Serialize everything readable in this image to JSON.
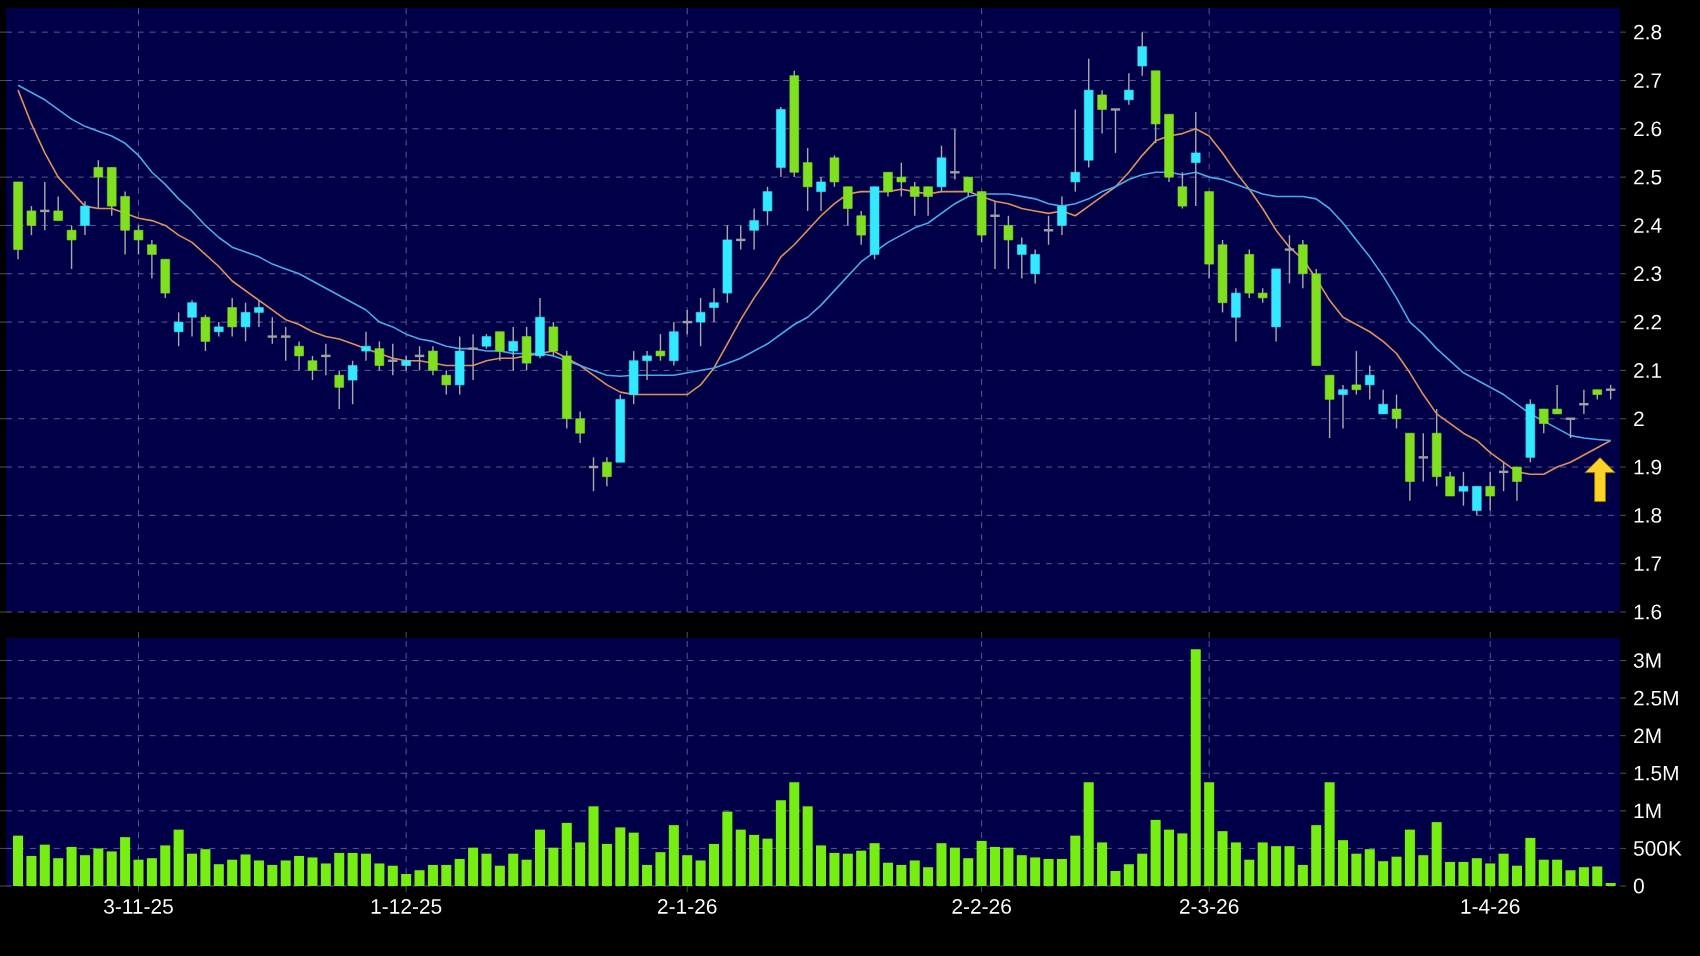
{
  "chart_data": [
    {
      "type": "candlestick",
      "categories": [
        null,
        null,
        null,
        null,
        null,
        null,
        null,
        null,
        null,
        null,
        null,
        null,
        null,
        null,
        null,
        null,
        null,
        null,
        null,
        null,
        null,
        null,
        null,
        null,
        null,
        null,
        null,
        null,
        null,
        null,
        null,
        null,
        null,
        null,
        null,
        null,
        null,
        null,
        null,
        null,
        null,
        null,
        null,
        null,
        null,
        null,
        null,
        null,
        null,
        null,
        null,
        null,
        null,
        null,
        null,
        null,
        null,
        null,
        null,
        null,
        null,
        null,
        null,
        null,
        null,
        null,
        null,
        null,
        null,
        null,
        null,
        null,
        null,
        null,
        null,
        null,
        null,
        null,
        null,
        null,
        null,
        null,
        null,
        null,
        null,
        null,
        null,
        null,
        null,
        null,
        null,
        null,
        null,
        null,
        null,
        null,
        null,
        null,
        null,
        null,
        null,
        null,
        null,
        null,
        null,
        null,
        null,
        null,
        null,
        null,
        null,
        null,
        null,
        null,
        null,
        null,
        null,
        null,
        null,
        null
      ],
      "ohlc": [
        [
          2.49,
          2.49,
          2.33,
          2.35
        ],
        [
          2.43,
          2.44,
          2.38,
          2.4
        ],
        [
          2.43,
          2.49,
          2.39,
          2.43
        ],
        [
          2.43,
          2.46,
          2.41,
          2.41
        ],
        [
          2.39,
          2.4,
          2.31,
          2.37
        ],
        [
          2.4,
          2.45,
          2.38,
          2.44
        ],
        [
          2.52,
          2.535,
          2.435,
          2.5
        ],
        [
          2.52,
          2.52,
          2.42,
          2.44
        ],
        [
          2.46,
          2.47,
          2.34,
          2.39
        ],
        [
          2.39,
          2.4,
          2.34,
          2.37
        ],
        [
          2.36,
          2.37,
          2.29,
          2.34
        ],
        [
          2.33,
          2.33,
          2.25,
          2.26
        ],
        [
          2.18,
          2.22,
          2.15,
          2.2
        ],
        [
          2.21,
          2.245,
          2.17,
          2.24
        ],
        [
          2.21,
          2.215,
          2.14,
          2.16
        ],
        [
          2.18,
          2.2,
          2.17,
          2.19
        ],
        [
          2.23,
          2.25,
          2.17,
          2.19
        ],
        [
          2.19,
          2.24,
          2.16,
          2.22
        ],
        [
          2.22,
          2.245,
          2.19,
          2.23
        ],
        [
          2.17,
          2.21,
          2.155,
          2.17
        ],
        [
          2.17,
          2.19,
          2.12,
          2.17
        ],
        [
          2.15,
          2.16,
          2.1,
          2.13
        ],
        [
          2.12,
          2.13,
          2.08,
          2.1
        ],
        [
          2.13,
          2.155,
          2.09,
          2.13
        ],
        [
          2.09,
          2.1,
          2.02,
          2.065
        ],
        [
          2.08,
          2.12,
          2.03,
          2.11
        ],
        [
          2.14,
          2.18,
          2.12,
          2.15
        ],
        [
          2.145,
          2.16,
          2.1,
          2.11
        ],
        [
          2.12,
          2.155,
          2.09,
          2.12
        ],
        [
          2.11,
          2.13,
          2.1,
          2.12
        ],
        [
          2.13,
          2.15,
          2.1,
          2.13
        ],
        [
          2.14,
          2.15,
          2.09,
          2.1
        ],
        [
          2.09,
          2.1,
          2.05,
          2.07
        ],
        [
          2.07,
          2.17,
          2.05,
          2.14
        ],
        [
          2.145,
          2.175,
          2.08,
          2.145
        ],
        [
          2.15,
          2.175,
          2.145,
          2.17
        ],
        [
          2.18,
          2.18,
          2.12,
          2.14
        ],
        [
          2.14,
          2.19,
          2.1,
          2.16
        ],
        [
          2.17,
          2.19,
          2.1,
          2.115
        ],
        [
          2.13,
          2.25,
          2.125,
          2.21
        ],
        [
          2.19,
          2.2,
          2.13,
          2.14
        ],
        [
          2.13,
          2.14,
          1.98,
          2.0
        ],
        [
          2.0,
          2.015,
          1.95,
          1.97
        ],
        [
          1.9,
          1.92,
          1.85,
          1.9
        ],
        [
          1.91,
          1.92,
          1.86,
          1.88
        ],
        [
          1.91,
          2.05,
          1.91,
          2.04
        ],
        [
          2.05,
          2.14,
          2.03,
          2.12
        ],
        [
          2.12,
          2.14,
          2.08,
          2.13
        ],
        [
          2.14,
          2.175,
          2.12,
          2.13
        ],
        [
          2.12,
          2.2,
          2.11,
          2.18
        ],
        [
          2.2,
          2.225,
          2.175,
          2.2
        ],
        [
          2.2,
          2.25,
          2.15,
          2.22
        ],
        [
          2.23,
          2.27,
          2.2,
          2.24
        ],
        [
          2.26,
          2.4,
          2.24,
          2.37
        ],
        [
          2.37,
          2.4,
          2.35,
          2.37
        ],
        [
          2.39,
          2.435,
          2.35,
          2.41
        ],
        [
          2.43,
          2.48,
          2.4,
          2.47
        ],
        [
          2.52,
          2.645,
          2.5,
          2.64
        ],
        [
          2.71,
          2.72,
          2.5,
          2.51
        ],
        [
          2.53,
          2.56,
          2.43,
          2.48
        ],
        [
          2.47,
          2.5,
          2.43,
          2.49
        ],
        [
          2.54,
          2.545,
          2.48,
          2.49
        ],
        [
          2.48,
          2.48,
          2.4,
          2.435
        ],
        [
          2.42,
          2.43,
          2.36,
          2.38
        ],
        [
          2.34,
          2.48,
          2.33,
          2.48
        ],
        [
          2.51,
          2.51,
          2.46,
          2.47
        ],
        [
          2.5,
          2.53,
          2.46,
          2.49
        ],
        [
          2.48,
          2.49,
          2.42,
          2.46
        ],
        [
          2.48,
          2.48,
          2.42,
          2.46
        ],
        [
          2.48,
          2.565,
          2.47,
          2.54
        ],
        [
          2.51,
          2.6,
          2.495,
          2.51
        ],
        [
          2.5,
          2.5,
          2.46,
          2.47
        ],
        [
          2.47,
          2.47,
          2.365,
          2.38
        ],
        [
          2.42,
          2.45,
          2.31,
          2.42
        ],
        [
          2.4,
          2.42,
          2.31,
          2.37
        ],
        [
          2.34,
          2.375,
          2.29,
          2.36
        ],
        [
          2.3,
          2.35,
          2.28,
          2.34
        ],
        [
          2.39,
          2.42,
          2.36,
          2.39
        ],
        [
          2.4,
          2.46,
          2.38,
          2.44
        ],
        [
          2.49,
          2.64,
          2.47,
          2.51
        ],
        [
          2.535,
          2.745,
          2.52,
          2.68
        ],
        [
          2.67,
          2.68,
          2.59,
          2.64
        ],
        [
          2.64,
          2.64,
          2.55,
          2.64
        ],
        [
          2.66,
          2.715,
          2.65,
          2.68
        ],
        [
          2.73,
          2.8,
          2.71,
          2.77
        ],
        [
          2.72,
          2.72,
          2.57,
          2.61
        ],
        [
          2.63,
          2.63,
          2.49,
          2.5
        ],
        [
          2.48,
          2.51,
          2.435,
          2.44
        ],
        [
          2.53,
          2.635,
          2.44,
          2.55
        ],
        [
          2.47,
          2.47,
          2.29,
          2.32
        ],
        [
          2.36,
          2.37,
          2.22,
          2.24
        ],
        [
          2.21,
          2.27,
          2.16,
          2.26
        ],
        [
          2.34,
          2.35,
          2.25,
          2.26
        ],
        [
          2.26,
          2.27,
          2.24,
          2.25
        ],
        [
          2.19,
          2.31,
          2.16,
          2.31
        ],
        [
          2.35,
          2.38,
          2.28,
          2.35
        ],
        [
          2.36,
          2.37,
          2.27,
          2.3
        ],
        [
          2.3,
          2.31,
          2.11,
          2.11
        ],
        [
          2.09,
          2.09,
          1.96,
          2.04
        ],
        [
          2.05,
          2.07,
          1.98,
          2.06
        ],
        [
          2.07,
          2.14,
          2.05,
          2.06
        ],
        [
          2.07,
          2.11,
          2.04,
          2.09
        ],
        [
          2.01,
          2.06,
          2.01,
          2.03
        ],
        [
          2.02,
          2.05,
          1.98,
          2.0
        ],
        [
          1.97,
          1.97,
          1.83,
          1.87
        ],
        [
          1.92,
          1.97,
          1.87,
          1.92
        ],
        [
          1.97,
          2.02,
          1.86,
          1.88
        ],
        [
          1.88,
          1.89,
          1.84,
          1.84
        ],
        [
          1.85,
          1.89,
          1.82,
          1.86
        ],
        [
          1.81,
          1.86,
          1.8,
          1.86
        ],
        [
          1.86,
          1.89,
          1.81,
          1.84
        ],
        [
          1.89,
          1.91,
          1.85,
          1.89
        ],
        [
          1.9,
          1.9,
          1.83,
          1.87
        ],
        [
          1.92,
          2.04,
          1.91,
          2.03
        ],
        [
          2.02,
          2.02,
          1.97,
          1.99
        ],
        [
          2.02,
          2.07,
          2.01,
          2.01
        ],
        [
          2.0,
          2.0,
          1.96,
          2.0
        ],
        [
          2.03,
          2.06,
          2.01,
          2.03
        ],
        [
          2.06,
          2.06,
          2.04,
          2.05
        ],
        [
          2.06,
          2.07,
          2.04,
          2.06
        ]
      ],
      "colors": [
        "#80e020",
        "#80e020",
        "#a0a0a0",
        "#80e020",
        "#80e020",
        "#33e8ff",
        "#80e020",
        "#80e020",
        "#80e020",
        "#80e020",
        "#80e020",
        "#80e020",
        "#33e8ff",
        "#33e8ff",
        "#80e020",
        "#33e8ff",
        "#80e020",
        "#33e8ff",
        "#33e8ff",
        "#a0a0a0",
        "#a0a0a0",
        "#80e020",
        "#80e020",
        "#a0a0a0",
        "#80e020",
        "#33e8ff",
        "#33e8ff",
        "#80e020",
        "#a0a0a0",
        "#33e8ff",
        "#a0a0a0",
        "#80e020",
        "#80e020",
        "#33e8ff",
        "#a0a0a0",
        "#33e8ff",
        "#80e020",
        "#33e8ff",
        "#80e020",
        "#33e8ff",
        "#80e020",
        "#80e020",
        "#80e020",
        "#a0a0a0",
        "#80e020",
        "#33e8ff",
        "#33e8ff",
        "#33e8ff",
        "#80e020",
        "#33e8ff",
        "#a0a0a0",
        "#33e8ff",
        "#33e8ff",
        "#33e8ff",
        "#a0a0a0",
        "#33e8ff",
        "#33e8ff",
        "#33e8ff",
        "#80e020",
        "#80e020",
        "#33e8ff",
        "#80e020",
        "#80e020",
        "#80e020",
        "#33e8ff",
        "#80e020",
        "#80e020",
        "#80e020",
        "#80e020",
        "#33e8ff",
        "#a0a0a0",
        "#80e020",
        "#80e020",
        "#a0a0a0",
        "#80e020",
        "#33e8ff",
        "#33e8ff",
        "#a0a0a0",
        "#33e8ff",
        "#33e8ff",
        "#33e8ff",
        "#80e020",
        "#a0a0a0",
        "#33e8ff",
        "#33e8ff",
        "#80e020",
        "#80e020",
        "#80e020",
        "#33e8ff",
        "#80e020",
        "#80e020",
        "#33e8ff",
        "#80e020",
        "#80e020",
        "#33e8ff",
        "#a0a0a0",
        "#80e020",
        "#80e020",
        "#80e020",
        "#33e8ff",
        "#80e020",
        "#33e8ff",
        "#33e8ff",
        "#80e020",
        "#80e020",
        "#a0a0a0",
        "#80e020",
        "#80e020",
        "#33e8ff",
        "#33e8ff",
        "#80e020",
        "#a0a0a0",
        "#80e020",
        "#33e8ff",
        "#80e020",
        "#80e020",
        "#a0a0a0",
        "#a0a0a0",
        "#80e020",
        "#a0a0a0"
      ],
      "series": [
        {
          "type": "line",
          "color": "#e0905a",
          "values": [
            2.68,
            2.61,
            2.55,
            2.5,
            2.47,
            2.44,
            2.435,
            2.435,
            2.425,
            2.415,
            2.41,
            2.4,
            2.38,
            2.365,
            2.34,
            2.315,
            2.285,
            2.265,
            2.245,
            2.225,
            2.205,
            2.195,
            2.18,
            2.17,
            2.165,
            2.155,
            2.145,
            2.135,
            2.125,
            2.12,
            2.12,
            2.115,
            2.11,
            2.11,
            2.11,
            2.12,
            2.125,
            2.125,
            2.13,
            2.135,
            2.14,
            2.125,
            2.11,
            2.09,
            2.07,
            2.055,
            2.05,
            2.05,
            2.05,
            2.05,
            2.05,
            2.07,
            2.105,
            2.155,
            2.205,
            2.25,
            2.29,
            2.335,
            2.36,
            2.39,
            2.42,
            2.445,
            2.465,
            2.47,
            2.47,
            2.47,
            2.475,
            2.47,
            2.465,
            2.47,
            2.47,
            2.47,
            2.46,
            2.45,
            2.445,
            2.435,
            2.43,
            2.425,
            2.43,
            2.42,
            2.44,
            2.46,
            2.48,
            2.51,
            2.545,
            2.575,
            2.585,
            2.59,
            2.6,
            2.585,
            2.55,
            2.51,
            2.475,
            2.435,
            2.39,
            2.355,
            2.33,
            2.29,
            2.245,
            2.21,
            2.195,
            2.18,
            2.16,
            2.135,
            2.095,
            2.05,
            2.01,
            1.99,
            1.97,
            1.955,
            1.93,
            1.91,
            1.89,
            1.885,
            1.885,
            1.9,
            1.91,
            1.925,
            1.94,
            1.955
          ]
        },
        {
          "type": "line",
          "color": "#4aaae8",
          "values": [
            2.69,
            2.675,
            2.66,
            2.64,
            2.62,
            2.605,
            2.595,
            2.585,
            2.57,
            2.545,
            2.51,
            2.485,
            2.455,
            2.43,
            2.4,
            2.375,
            2.355,
            2.345,
            2.335,
            2.32,
            2.31,
            2.3,
            2.285,
            2.27,
            2.255,
            2.24,
            2.225,
            2.2,
            2.19,
            2.175,
            2.165,
            2.16,
            2.15,
            2.145,
            2.145,
            2.14,
            2.14,
            2.135,
            2.135,
            2.135,
            2.13,
            2.12,
            2.11,
            2.1,
            2.09,
            2.088,
            2.09,
            2.09,
            2.09,
            2.09,
            2.095,
            2.1,
            2.105,
            2.115,
            2.125,
            2.14,
            2.155,
            2.175,
            2.195,
            2.21,
            2.235,
            2.265,
            2.295,
            2.325,
            2.345,
            2.365,
            2.38,
            2.395,
            2.405,
            2.425,
            2.445,
            2.46,
            2.465,
            2.465,
            2.465,
            2.46,
            2.455,
            2.445,
            2.44,
            2.445,
            2.455,
            2.47,
            2.48,
            2.495,
            2.505,
            2.51,
            2.51,
            2.505,
            2.51,
            2.5,
            2.495,
            2.485,
            2.475,
            2.465,
            2.46,
            2.46,
            2.46,
            2.455,
            2.435,
            2.405,
            2.37,
            2.335,
            2.295,
            2.25,
            2.2,
            2.175,
            2.145,
            2.12,
            2.095,
            2.08,
            2.065,
            2.05,
            2.03,
            2.01,
            1.995,
            1.98,
            1.965,
            1.96,
            1.957,
            1.955
          ]
        }
      ],
      "ylim": [
        1.6,
        2.85
      ],
      "yticks": [
        1.6,
        1.7,
        1.8,
        1.9,
        2,
        2.1,
        2.2,
        2.3,
        2.4,
        2.5,
        2.6,
        2.7,
        2.8
      ],
      "grid": true,
      "tick_labels": "y"
    },
    {
      "type": "bar",
      "categories": [
        null,
        null,
        null,
        null,
        null,
        null,
        null,
        null,
        null,
        "3-11-25",
        null,
        null,
        null,
        null,
        null,
        null,
        null,
        null,
        null,
        null,
        null,
        null,
        null,
        null,
        null,
        null,
        null,
        null,
        null,
        "1-12-25",
        null,
        null,
        null,
        null,
        null,
        null,
        null,
        null,
        null,
        null,
        null,
        null,
        null,
        null,
        null,
        null,
        null,
        null,
        null,
        null,
        "2-1-26",
        null,
        null,
        null,
        null,
        null,
        null,
        null,
        null,
        null,
        null,
        null,
        null,
        null,
        null,
        null,
        null,
        null,
        null,
        null,
        null,
        null,
        "2-2-26",
        null,
        null,
        null,
        null,
        null,
        null,
        null,
        null,
        null,
        null,
        null,
        null,
        null,
        null,
        null,
        null,
        "2-3-26",
        null,
        null,
        null,
        null,
        null,
        null,
        null,
        null,
        null,
        null,
        null,
        null,
        null,
        null,
        null,
        null,
        null,
        null,
        null,
        null,
        "1-4-26",
        null,
        null,
        null,
        null,
        null,
        null,
        null,
        null,
        null
      ],
      "values": [
        670000,
        400000,
        550000,
        370000,
        520000,
        410000,
        500000,
        460000,
        650000,
        350000,
        370000,
        540000,
        750000,
        430000,
        490000,
        290000,
        350000,
        420000,
        340000,
        280000,
        340000,
        400000,
        380000,
        300000,
        440000,
        440000,
        430000,
        300000,
        270000,
        160000,
        210000,
        280000,
        280000,
        360000,
        510000,
        430000,
        270000,
        430000,
        350000,
        750000,
        510000,
        840000,
        580000,
        1060000,
        560000,
        780000,
        710000,
        280000,
        450000,
        810000,
        410000,
        340000,
        560000,
        990000,
        750000,
        680000,
        630000,
        1140000,
        1380000,
        1060000,
        540000,
        440000,
        430000,
        470000,
        570000,
        310000,
        280000,
        340000,
        250000,
        570000,
        510000,
        370000,
        600000,
        520000,
        510000,
        410000,
        380000,
        360000,
        360000,
        670000,
        1380000,
        580000,
        200000,
        290000,
        430000,
        880000,
        750000,
        700000,
        3150000,
        1380000,
        730000,
        580000,
        350000,
        580000,
        530000,
        530000,
        280000,
        810000,
        1380000,
        610000,
        430000,
        490000,
        330000,
        390000,
        750000,
        410000,
        850000,
        320000,
        320000,
        370000,
        300000,
        430000,
        270000,
        640000,
        350000,
        350000,
        210000,
        250000,
        260000,
        40000
      ],
      "color": "#77ee11",
      "ylim": [
        0,
        3300000
      ],
      "yticks": [
        0,
        {
          "value": 500000,
          "label": "500K"
        },
        {
          "value": 1000000,
          "label": "1M"
        },
        {
          "value": 1500000,
          "label": "1.5M"
        },
        {
          "value": 2000000,
          "label": "2M"
        },
        {
          "value": 2500000,
          "label": "2.5M"
        },
        {
          "value": 3000000,
          "label": "3M"
        }
      ],
      "grid": true
    }
  ]
}
